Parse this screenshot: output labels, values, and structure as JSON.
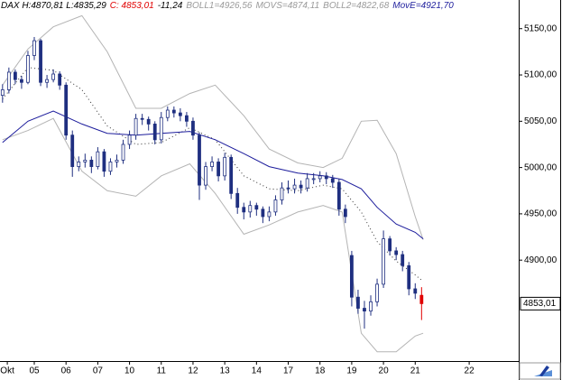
{
  "chart_data": {
    "type": "candlestick",
    "header": [
      {
        "text": "DAX H:4870,81 L:4835,29",
        "color": "#000000"
      },
      {
        "text": "C: 4853,01",
        "color": "#e00000"
      },
      {
        "text": "-11,24",
        "color": "#000000"
      },
      {
        "text": "BOLL1=4926,56",
        "color": "#9a9a9a"
      },
      {
        "text": "MOVS=4874,11",
        "color": "#9a9a9a"
      },
      {
        "text": "BOLL2=4822,68",
        "color": "#9a9a9a"
      },
      {
        "text": "MovE=4921,70",
        "color": "#1c1c9c"
      }
    ],
    "color": "#1f2f80",
    "last_candle_color": "#e00000",
    "x": [
      0,
      0.2,
      0.4,
      0.6,
      0.8,
      1.0,
      1.2,
      1.4,
      1.6,
      1.8,
      2.0,
      2.2,
      2.4,
      2.6,
      2.8,
      3.0,
      3.2,
      3.4,
      3.6,
      3.8,
      4.0,
      4.2,
      4.4,
      4.6,
      4.8,
      5.0,
      5.2,
      5.4,
      5.6,
      5.8,
      6.0,
      6.2,
      6.4,
      6.6,
      6.8,
      7.0,
      7.2,
      7.4,
      7.6,
      7.8,
      8.0,
      8.2,
      8.4,
      8.6,
      8.8,
      9.0,
      9.2,
      9.4,
      9.6,
      9.8,
      10.0,
      10.2,
      10.4,
      10.6,
      10.8,
      11.0,
      11.2,
      11.4,
      11.6,
      11.8,
      12.0,
      12.2,
      12.4,
      12.6,
      12.8,
      13.0,
      13.2
    ],
    "ohlc": [
      [
        5078,
        5090,
        5070,
        5084
      ],
      [
        5084,
        5108,
        5080,
        5103
      ],
      [
        5103,
        5106,
        5090,
        5095
      ],
      [
        5095,
        5099,
        5085,
        5092
      ],
      [
        5092,
        5126,
        5090,
        5121
      ],
      [
        5121,
        5141,
        5116,
        5137
      ],
      [
        5137,
        5139,
        5088,
        5092
      ],
      [
        5092,
        5100,
        5086,
        5095
      ],
      [
        5095,
        5106,
        5092,
        5101
      ],
      [
        5101,
        5104,
        5084,
        5089
      ],
      [
        5089,
        5092,
        5030,
        5035
      ],
      [
        5035,
        5040,
        4990,
        5001
      ],
      [
        5001,
        5012,
        4996,
        5006
      ],
      [
        5006,
        5015,
        5000,
        5008
      ],
      [
        5008,
        5012,
        4994,
        5001
      ],
      [
        5001,
        5022,
        4998,
        5017
      ],
      [
        5017,
        5020,
        4990,
        4996
      ],
      [
        4996,
        5010,
        4992,
        5006
      ],
      [
        5006,
        5014,
        5000,
        5008
      ],
      [
        5008,
        5030,
        5004,
        5025
      ],
      [
        5025,
        5040,
        5020,
        5035
      ],
      [
        5035,
        5058,
        5030,
        5053
      ],
      [
        5053,
        5058,
        5046,
        5052
      ],
      [
        5052,
        5055,
        5040,
        5047
      ],
      [
        5047,
        5050,
        5025,
        5030
      ],
      [
        5030,
        5060,
        5026,
        5054
      ],
      [
        5054,
        5066,
        5050,
        5062
      ],
      [
        5062,
        5066,
        5054,
        5059
      ],
      [
        5059,
        5064,
        5050,
        5056
      ],
      [
        5056,
        5060,
        5044,
        5050
      ],
      [
        5050,
        5054,
        5030,
        5035
      ],
      [
        5035,
        5038,
        4965,
        4981
      ],
      [
        4981,
        5006,
        4976,
        5001
      ],
      [
        5001,
        5012,
        4996,
        5006
      ],
      [
        5006,
        5010,
        4985,
        4991
      ],
      [
        4991,
        5016,
        4986,
        5011
      ],
      [
        5011,
        5014,
        4966,
        4972
      ],
      [
        4972,
        4978,
        4950,
        4957
      ],
      [
        4957,
        4962,
        4944,
        4952
      ],
      [
        4952,
        4964,
        4946,
        4959
      ],
      [
        4959,
        4962,
        4948,
        4955
      ],
      [
        4955,
        4958,
        4940,
        4947
      ],
      [
        4947,
        4958,
        4942,
        4952
      ],
      [
        4952,
        4970,
        4948,
        4965
      ],
      [
        4965,
        4984,
        4960,
        4978
      ],
      [
        4978,
        4986,
        4972,
        4977
      ],
      [
        4977,
        4988,
        4972,
        4981
      ],
      [
        4981,
        4986,
        4972,
        4978
      ],
      [
        4978,
        4994,
        4974,
        4988
      ],
      [
        4988,
        4994,
        4982,
        4988
      ],
      [
        4988,
        4996,
        4984,
        4991
      ],
      [
        4991,
        4995,
        4982,
        4988
      ],
      [
        4988,
        4992,
        4978,
        4984
      ],
      [
        4984,
        4988,
        4948,
        4955
      ],
      [
        4955,
        4960,
        4940,
        4947
      ],
      [
        4905,
        4910,
        4850,
        4860
      ],
      [
        4860,
        4868,
        4842,
        4848
      ],
      [
        4848,
        4856,
        4826,
        4845
      ],
      [
        4845,
        4862,
        4840,
        4855
      ],
      [
        4855,
        4880,
        4850,
        4874
      ],
      [
        4874,
        4932,
        4870,
        4923
      ],
      [
        4923,
        4926,
        4905,
        4910
      ],
      [
        4910,
        4914,
        4900,
        4906
      ],
      [
        4906,
        4910,
        4888,
        4894
      ],
      [
        4894,
        4898,
        4862,
        4869
      ],
      [
        4869,
        4875,
        4858,
        4864.25
      ],
      [
        4862,
        4870.81,
        4835.29,
        4853.01
      ]
    ],
    "lines": [
      {
        "name": "BOLL1",
        "color": "#b4b4b4",
        "dashed": false,
        "x": [
          0,
          0.8,
          1.6,
          2.5,
          3.3,
          4.2,
          5.0,
          5.9,
          6.7,
          7.6,
          8.4,
          9.3,
          10.1,
          10.7,
          11.3,
          11.8,
          12.4,
          13.0,
          13.25
        ],
        "values": [
          5089,
          5128,
          5152,
          5164,
          5125,
          5064,
          5064,
          5080,
          5089,
          5056,
          5020,
          5005,
          5000,
          5010,
          5050,
          5051,
          5015,
          4947,
          4922
        ]
      },
      {
        "name": "BOLL2",
        "color": "#b4b4b4",
        "dashed": false,
        "x": [
          0,
          0.8,
          1.6,
          2.5,
          3.3,
          4.2,
          5.0,
          5.9,
          6.7,
          7.6,
          8.4,
          9.3,
          10.1,
          10.7,
          11.3,
          11.8,
          12.4,
          13.0,
          13.25
        ],
        "values": [
          5030,
          5040,
          5053,
          4996,
          4975,
          4969,
          4991,
          5004,
          4972,
          4928,
          4938,
          4952,
          4959,
          4952,
          4821,
          4801,
          4801,
          4818,
          4821
        ]
      },
      {
        "name": "MOVS",
        "color": "#333333",
        "dashed": true,
        "x": [
          0,
          0.8,
          1.6,
          2.5,
          3.3,
          4.2,
          5.0,
          5.9,
          6.7,
          7.6,
          8.4,
          9.3,
          10.1,
          10.7,
          11.3,
          11.8,
          12.4,
          13.0,
          13.25
        ],
        "values": [
          5074,
          5108,
          5105,
          5084,
          5045,
          5025,
          5027,
          5043,
          5030,
          4991,
          4977,
          4975,
          4981,
          4977,
          4952,
          4920,
          4899,
          4884,
          4877
        ]
      },
      {
        "name": "MovE",
        "color": "#1c1c9c",
        "dashed": false,
        "x": [
          0,
          0.8,
          1.6,
          2.5,
          3.3,
          4.2,
          5.0,
          5.9,
          6.7,
          7.6,
          8.4,
          9.3,
          10.1,
          10.7,
          11.3,
          11.8,
          12.4,
          13.0,
          13.25
        ],
        "values": [
          5027,
          5050,
          5061,
          5047,
          5037,
          5035,
          5037,
          5039,
          5030,
          5015,
          5001,
          4994,
          4991,
          4987,
          4977,
          4957,
          4939,
          4930,
          4923
        ]
      }
    ],
    "last_price": {
      "value": 4853.01,
      "label": "4853,01"
    },
    "xlim": [
      -0.08,
      16.26
    ],
    "xticks": [
      {
        "value": 0.15,
        "label": "Okt"
      },
      {
        "value": 1,
        "label": "05"
      },
      {
        "value": 2,
        "label": "06"
      },
      {
        "value": 3,
        "label": "07"
      },
      {
        "value": 4,
        "label": "10"
      },
      {
        "value": 5,
        "label": "11"
      },
      {
        "value": 6,
        "label": "12"
      },
      {
        "value": 7,
        "label": "13"
      },
      {
        "value": 8,
        "label": "14"
      },
      {
        "value": 9,
        "label": "17"
      },
      {
        "value": 10,
        "label": "18"
      },
      {
        "value": 11,
        "label": "19"
      },
      {
        "value": 12,
        "label": "20"
      },
      {
        "value": 13,
        "label": "21"
      },
      {
        "value": 14.7,
        "label": "22"
      }
    ],
    "ylim": [
      4791,
      5179
    ],
    "yticks": [
      {
        "value": 4900,
        "label": "4900,00"
      },
      {
        "value": 4950,
        "label": "4950,00"
      },
      {
        "value": 5000,
        "label": "5000,00"
      },
      {
        "value": 5050,
        "label": "5050,00"
      },
      {
        "value": 5100,
        "label": "5100,00"
      },
      {
        "value": 5150,
        "label": "5150,00"
      }
    ]
  }
}
